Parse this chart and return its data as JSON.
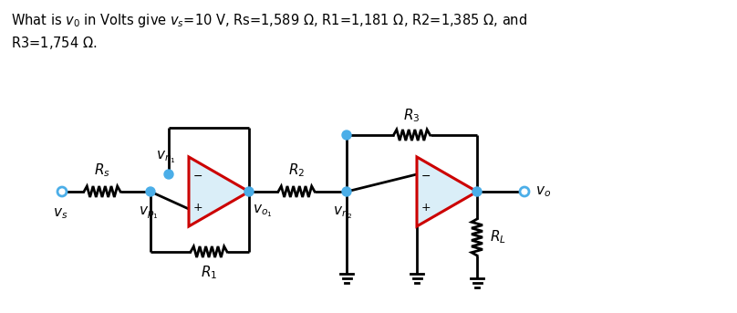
{
  "bg_color": "#ffffff",
  "op_amp_fill": "#daeef8",
  "op_amp_edge": "#cc0000",
  "wire_color": "#000000",
  "node_color": "#4baee8",
  "label_color": "#000000",
  "fig_width": 8.08,
  "fig_height": 3.43,
  "title1": "What is $v_0$ in Volts give $v_s$=10 V, Rs=1,589 $\\Omega$, R1=1,181 $\\Omega$, R2=1,385 $\\Omega$, and",
  "title2": "R3=1,754 $\\Omega$."
}
